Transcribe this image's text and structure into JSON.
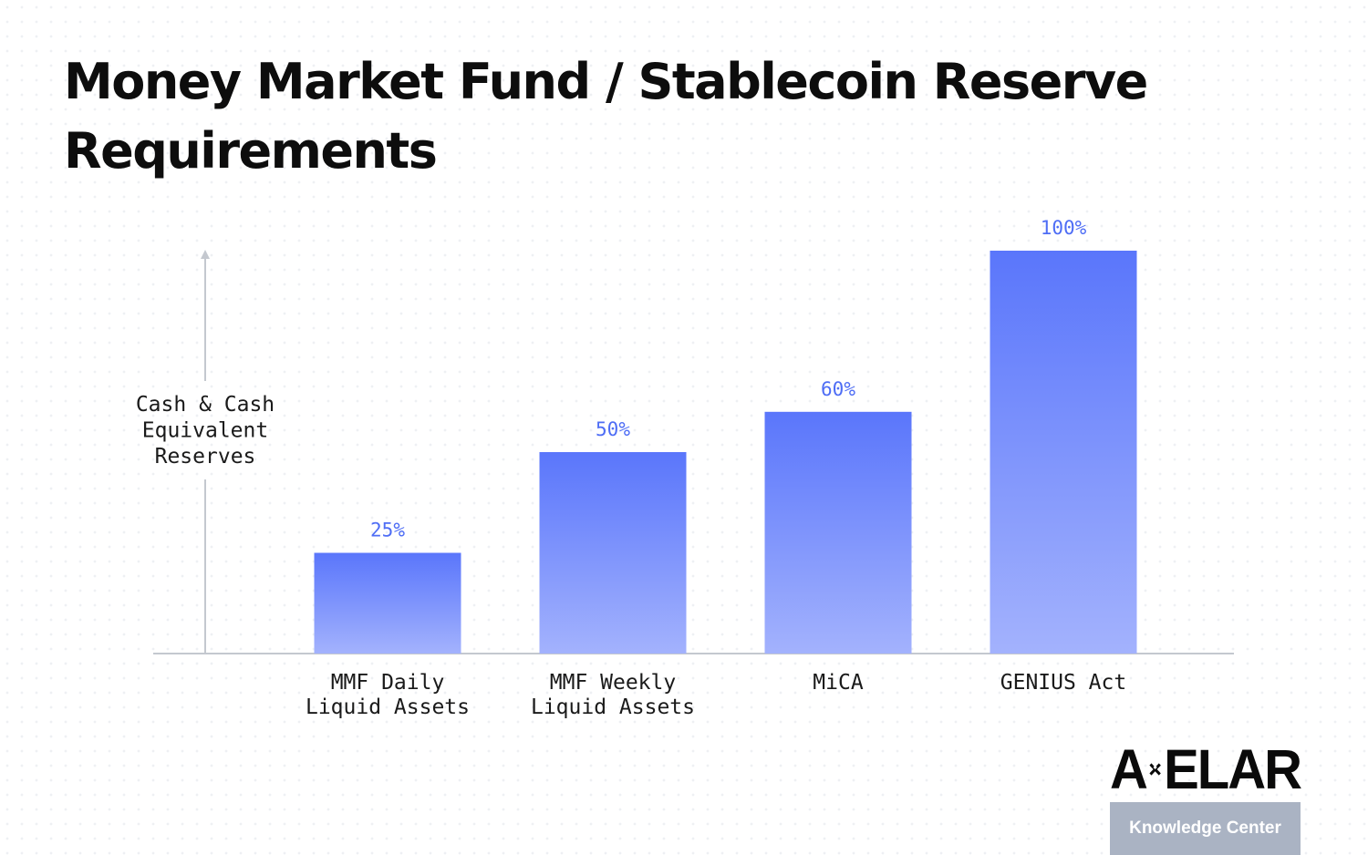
{
  "chart_data": {
    "type": "bar",
    "title": "Money Market Fund / Stablecoin Reserve Requirements",
    "ylabel": [
      "Cash & Cash",
      "Equivalent",
      "Reserves"
    ],
    "xlabel": "",
    "ylim": [
      0,
      100
    ],
    "categories": [
      [
        "MMF Daily",
        "Liquid Assets"
      ],
      [
        "MMF Weekly",
        "Liquid Assets"
      ],
      [
        "MiCA"
      ],
      [
        "GENIUS Act"
      ]
    ],
    "values": [
      25,
      50,
      60,
      100
    ],
    "labels": [
      "25%",
      "50%",
      "60%",
      "100%"
    ],
    "grid": false,
    "colors": {
      "bar_top": "#5a76fb",
      "bar_bottom": "#a3b2fd",
      "label": "#4e6df5",
      "axis": "#c4c8cf"
    }
  },
  "brand": {
    "logo_left": "A",
    "logo_right": "ELAR",
    "logo_x_icon": "axelar-x-icon",
    "badge": "Knowledge Center"
  }
}
